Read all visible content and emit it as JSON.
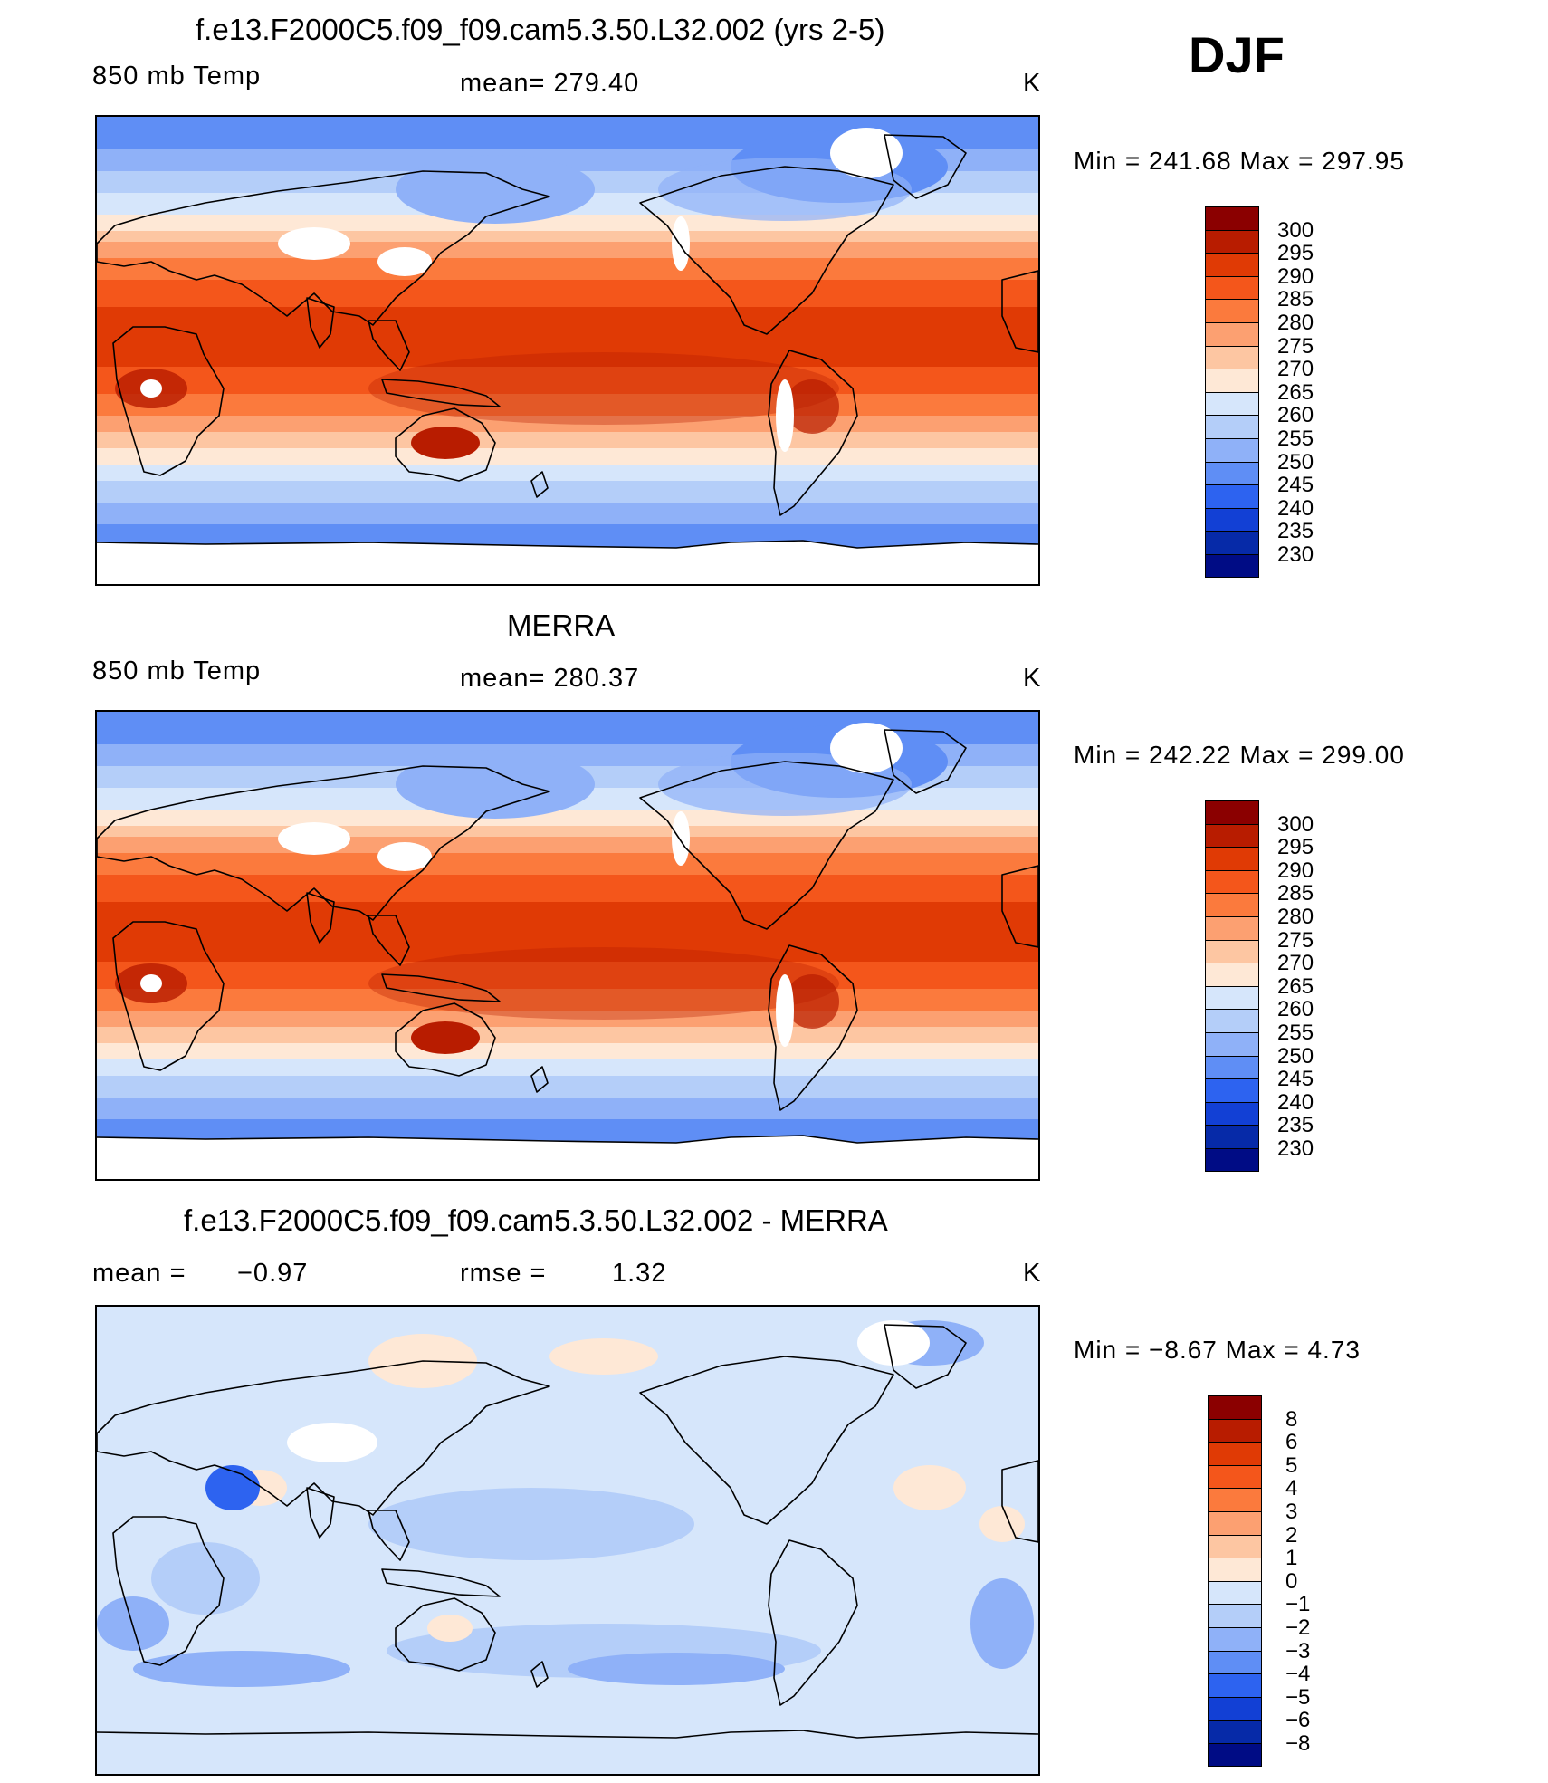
{
  "season": "DJF",
  "panels": [
    {
      "title": "f.e13.F2000C5.f09_f09.cam5.3.50.L32.002 (yrs 2-5)",
      "left_label": "850 mb Temp",
      "center_label": "mean= 279.40",
      "units": "K",
      "minmax": "Min  =  241.68  Max  =  297.95",
      "field": "model"
    },
    {
      "title": "MERRA",
      "left_label": "850 mb Temp",
      "center_label": "mean= 280.37",
      "units": "K",
      "minmax": "Min  =  242.22  Max  =  299.00",
      "field": "obs"
    },
    {
      "title": "f.e13.F2000C5.f09_f09.cam5.3.50.L32.002 - MERRA",
      "left_label": "mean  =",
      "left_value": "−0.97",
      "center_label": "rmse  =",
      "center_value": "1.32",
      "units": "K",
      "minmax": "Min  =    −8.67  Max  =      4.73",
      "field": "diff"
    }
  ],
  "temp_colorbar": {
    "labels": [
      "300",
      "295",
      "290",
      "285",
      "280",
      "275",
      "270",
      "265",
      "260",
      "255",
      "250",
      "245",
      "240",
      "235",
      "230"
    ],
    "colors": [
      "#8b0000",
      "#b81c00",
      "#e03a05",
      "#f4561b",
      "#fb7a3d",
      "#fca071",
      "#fdc6a2",
      "#fee8d6",
      "#d6e6fb",
      "#b4cef9",
      "#8fb1f8",
      "#5f8ef5",
      "#2d63f0",
      "#1240d5",
      "#062aa8",
      "#000c85"
    ]
  },
  "diff_colorbar": {
    "labels": [
      "8",
      "6",
      "5",
      "4",
      "3",
      "2",
      "1",
      "0",
      "−1",
      "−2",
      "−3",
      "−4",
      "−5",
      "−6",
      "−8"
    ],
    "colors": [
      "#8b0000",
      "#b81c00",
      "#e03a05",
      "#f4561b",
      "#fb7a3d",
      "#fca071",
      "#fdc6a2",
      "#fee8d6",
      "#d6e6fb",
      "#b4cef9",
      "#8fb1f8",
      "#5f8ef5",
      "#2d63f0",
      "#1240d5",
      "#062aa8",
      "#000c85"
    ]
  }
}
